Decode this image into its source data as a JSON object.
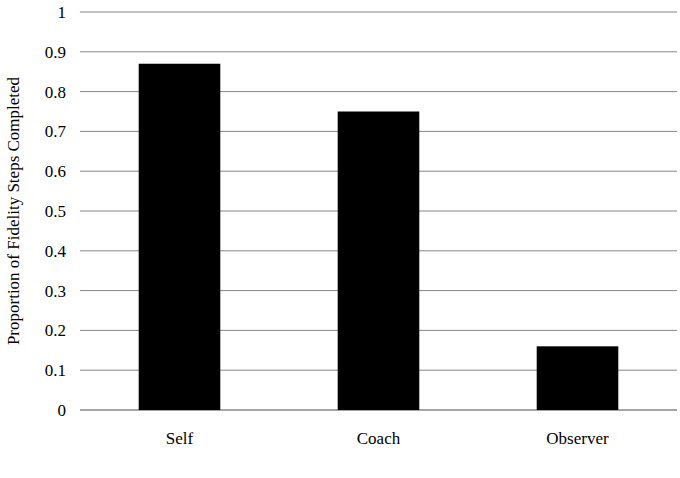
{
  "chart_data": {
    "type": "bar",
    "y_label": "Proportion of Fidelity Steps Completed",
    "categories": [
      "Self",
      "Coach",
      "Observer"
    ],
    "values": [
      0.87,
      0.75,
      0.16
    ],
    "color": "#000000",
    "ylim": [
      0,
      1
    ],
    "yticks": [
      0,
      0.1,
      0.2,
      0.3,
      0.4,
      0.5,
      0.6,
      0.7,
      0.8,
      0.9,
      1
    ],
    "grid": true
  }
}
